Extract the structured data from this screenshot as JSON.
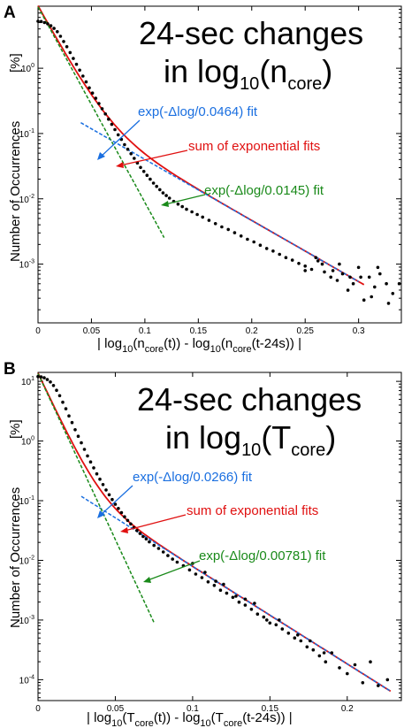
{
  "chart_data": [
    {
      "panel": "A",
      "type": "scatter",
      "title_line1": "24-sec changes",
      "title_line2_main": "in log",
      "title_line2_sub": "10",
      "title_line2_paren_open": "(n",
      "title_line2_sub2": "core",
      "title_line2_paren_close": ")",
      "ylabel": "Number of Occurrences",
      "yunit": "[%]",
      "xlabel_parts": [
        "| log",
        "10",
        "(n",
        "core",
        "(t))  -  log",
        "10",
        "(n",
        "core",
        "(t-24s)) |"
      ],
      "xlim": [
        0,
        0.34
      ],
      "ylim_log10": [
        -3.9,
        0.95
      ],
      "x_ticks": [
        0,
        0.05,
        0.1,
        0.15,
        0.2,
        0.25,
        0.3
      ],
      "x_tick_labels": [
        "0",
        "0.05",
        "0.1",
        "0.15",
        "0.2",
        "0.25",
        "0.3"
      ],
      "y_ticks_log10": [
        0,
        -1,
        -2,
        -3
      ],
      "y_tick_labels": [
        [
          "10",
          "0"
        ],
        [
          "10",
          "-1"
        ],
        [
          "10",
          "-2"
        ],
        [
          "10",
          "-3"
        ]
      ],
      "fit1": {
        "label": "exp(-Δlog/0.0464) fit",
        "color": "#1a6fe0",
        "scale": 0.0464,
        "A_log10": -0.46,
        "x_range": [
          0.04,
          0.3
        ]
      },
      "fit2": {
        "label": "exp(-Δlog/0.0145) fit",
        "color": "#1a8a1a",
        "scale": 0.0145,
        "A_log10": 0.94,
        "x_range": [
          0.0,
          0.118
        ]
      },
      "sum_fit": {
        "label": "sum of exponential fits",
        "color": "#e01010",
        "x_range": [
          0.0,
          0.305
        ]
      },
      "points": [
        [
          0.0,
          0.72
        ],
        [
          0.003,
          0.715
        ],
        [
          0.006,
          0.7
        ],
        [
          0.009,
          0.68
        ],
        [
          0.012,
          0.65
        ],
        [
          0.015,
          0.61
        ],
        [
          0.018,
          0.56
        ],
        [
          0.021,
          0.49
        ],
        [
          0.024,
          0.41
        ],
        [
          0.027,
          0.33
        ],
        [
          0.03,
          0.24
        ],
        [
          0.033,
          0.15
        ],
        [
          0.036,
          0.06
        ],
        [
          0.039,
          -0.03
        ],
        [
          0.042,
          -0.12
        ],
        [
          0.045,
          -0.21
        ],
        [
          0.048,
          -0.3
        ],
        [
          0.051,
          -0.38
        ],
        [
          0.054,
          -0.46
        ],
        [
          0.057,
          -0.54
        ],
        [
          0.06,
          -0.62
        ],
        [
          0.063,
          -0.7
        ],
        [
          0.066,
          -0.78
        ],
        [
          0.069,
          -0.86
        ],
        [
          0.072,
          -0.94
        ],
        [
          0.075,
          -1.02
        ],
        [
          0.078,
          -1.09
        ],
        [
          0.081,
          -1.17
        ],
        [
          0.084,
          -1.24
        ],
        [
          0.087,
          -1.31
        ],
        [
          0.09,
          -1.38
        ],
        [
          0.093,
          -1.45
        ],
        [
          0.096,
          -1.52
        ],
        [
          0.099,
          -1.58
        ],
        [
          0.102,
          -1.64
        ],
        [
          0.105,
          -1.7
        ],
        [
          0.108,
          -1.76
        ],
        [
          0.111,
          -1.81
        ],
        [
          0.114,
          -1.86
        ],
        [
          0.117,
          -1.91
        ],
        [
          0.12,
          -1.95
        ],
        [
          0.123,
          -1.99
        ],
        [
          0.127,
          -2.04
        ],
        [
          0.131,
          -2.08
        ],
        [
          0.135,
          -2.12
        ],
        [
          0.139,
          -2.16
        ],
        [
          0.144,
          -2.2
        ],
        [
          0.149,
          -2.24
        ],
        [
          0.154,
          -2.28
        ],
        [
          0.16,
          -2.33
        ],
        [
          0.166,
          -2.38
        ],
        [
          0.172,
          -2.43
        ],
        [
          0.178,
          -2.47
        ],
        [
          0.184,
          -2.52
        ],
        [
          0.19,
          -2.57
        ],
        [
          0.196,
          -2.62
        ],
        [
          0.202,
          -2.66
        ],
        [
          0.208,
          -2.71
        ],
        [
          0.214,
          -2.76
        ],
        [
          0.22,
          -2.8
        ],
        [
          0.226,
          -2.85
        ],
        [
          0.232,
          -2.9
        ],
        [
          0.238,
          -2.94
        ],
        [
          0.244,
          -2.99
        ],
        [
          0.25,
          -3.03
        ],
        [
          0.256,
          -3.08
        ],
        [
          0.262,
          -2.95
        ],
        [
          0.268,
          -3.12
        ],
        [
          0.274,
          -3.2
        ],
        [
          0.28,
          -3.25
        ],
        [
          0.285,
          -3.15
        ],
        [
          0.29,
          -3.4
        ],
        [
          0.295,
          -3.3
        ],
        [
          0.3,
          -3.05
        ],
        [
          0.305,
          -3.55
        ],
        [
          0.31,
          -3.2
        ],
        [
          0.315,
          -3.35
        ],
        [
          0.32,
          -3.15
        ],
        [
          0.326,
          -3.3
        ],
        [
          0.332,
          -3.45
        ],
        [
          0.338,
          -3.3
        ],
        [
          0.25,
          -3.1
        ],
        [
          0.26,
          -2.9
        ],
        [
          0.266,
          -3.0
        ],
        [
          0.276,
          -3.1
        ],
        [
          0.282,
          -3.0
        ],
        [
          0.292,
          -3.2
        ],
        [
          0.302,
          -3.2
        ],
        [
          0.312,
          -3.5
        ],
        [
          0.318,
          -3.05
        ],
        [
          0.328,
          -3.6
        ]
      ]
    },
    {
      "panel": "B",
      "type": "scatter",
      "title_line1": "24-sec changes",
      "title_line2_main": "in log",
      "title_line2_sub": "10",
      "title_line2_paren_open": "(T",
      "title_line2_sub2": "core",
      "title_line2_paren_close": ")",
      "ylabel": "Number of Occurrences",
      "yunit": "[%]",
      "xlabel_parts": [
        "| log",
        "10",
        "(T",
        "core",
        "(t))  -  log",
        "10",
        "(T",
        "core",
        "(t-24s)) |"
      ],
      "xlim": [
        0,
        0.235
      ],
      "ylim_log10": [
        -4.35,
        1.15
      ],
      "x_ticks": [
        0,
        0.05,
        0.1,
        0.15,
        0.2
      ],
      "x_tick_labels": [
        "0",
        "0.05",
        "0.1",
        "0.15",
        "0.2"
      ],
      "y_ticks_log10": [
        1,
        0,
        -1,
        -2,
        -3,
        -4
      ],
      "y_tick_labels": [
        [
          "10",
          "1"
        ],
        [
          "10",
          "0"
        ],
        [
          "10",
          "-1"
        ],
        [
          "10",
          "-2"
        ],
        [
          "10",
          "-3"
        ],
        [
          "10",
          "-4"
        ]
      ],
      "fit1": {
        "label": "exp(-Δlog/0.0266) fit",
        "color": "#1a6fe0",
        "scale": 0.0266,
        "A_log10": -0.47,
        "x_range": [
          0.028,
          0.228
        ]
      },
      "fit2": {
        "label": "exp(-Δlog/0.00781) fit",
        "color": "#1a8a1a",
        "scale": 0.00781,
        "A_log10": 1.13,
        "x_range": [
          0.0,
          0.075
        ]
      },
      "sum_fit": {
        "label": "sum of exponential fits",
        "color": "#e01010",
        "x_range": [
          0.0,
          0.228
        ]
      },
      "points": [
        [
          0.0,
          1.08
        ],
        [
          0.002,
          1.075
        ],
        [
          0.004,
          1.06
        ],
        [
          0.006,
          1.03
        ],
        [
          0.008,
          0.99
        ],
        [
          0.01,
          0.93
        ],
        [
          0.012,
          0.85
        ],
        [
          0.014,
          0.76
        ],
        [
          0.016,
          0.65
        ],
        [
          0.018,
          0.54
        ],
        [
          0.02,
          0.42
        ],
        [
          0.022,
          0.31
        ],
        [
          0.024,
          0.19
        ],
        [
          0.026,
          0.08
        ],
        [
          0.028,
          -0.03
        ],
        [
          0.03,
          -0.14
        ],
        [
          0.032,
          -0.25
        ],
        [
          0.034,
          -0.35
        ],
        [
          0.036,
          -0.45
        ],
        [
          0.038,
          -0.55
        ],
        [
          0.04,
          -0.64
        ],
        [
          0.042,
          -0.73
        ],
        [
          0.044,
          -0.82
        ],
        [
          0.046,
          -0.9
        ],
        [
          0.048,
          -0.98
        ],
        [
          0.05,
          -1.06
        ],
        [
          0.052,
          -1.13
        ],
        [
          0.054,
          -1.2
        ],
        [
          0.056,
          -1.27
        ],
        [
          0.058,
          -1.33
        ],
        [
          0.06,
          -1.39
        ],
        [
          0.062,
          -1.45
        ],
        [
          0.064,
          -1.5
        ],
        [
          0.066,
          -1.55
        ],
        [
          0.068,
          -1.6
        ],
        [
          0.07,
          -1.64
        ],
        [
          0.072,
          -1.69
        ],
        [
          0.075,
          -1.75
        ],
        [
          0.078,
          -1.8
        ],
        [
          0.081,
          -1.86
        ],
        [
          0.084,
          -1.92
        ],
        [
          0.087,
          -1.98
        ],
        [
          0.09,
          -2.03
        ],
        [
          0.094,
          -2.09
        ],
        [
          0.098,
          -2.16
        ],
        [
          0.102,
          -2.23
        ],
        [
          0.106,
          -2.29
        ],
        [
          0.11,
          -2.36
        ],
        [
          0.114,
          -2.42
        ],
        [
          0.118,
          -2.5
        ],
        [
          0.122,
          -2.55
        ],
        [
          0.126,
          -2.62
        ],
        [
          0.13,
          -2.7
        ],
        [
          0.134,
          -2.75
        ],
        [
          0.138,
          -2.82
        ],
        [
          0.142,
          -2.9
        ],
        [
          0.146,
          -2.95
        ],
        [
          0.15,
          -3.05
        ],
        [
          0.154,
          -3.08
        ],
        [
          0.158,
          -3.15
        ],
        [
          0.162,
          -3.22
        ],
        [
          0.166,
          -3.3
        ],
        [
          0.17,
          -3.35
        ],
        [
          0.174,
          -3.45
        ],
        [
          0.178,
          -3.5
        ],
        [
          0.182,
          -3.6
        ],
        [
          0.186,
          -3.7
        ],
        [
          0.19,
          -3.55
        ],
        [
          0.195,
          -3.8
        ],
        [
          0.2,
          -3.9
        ],
        [
          0.205,
          -3.75
        ],
        [
          0.21,
          -4.05
        ],
        [
          0.215,
          -3.7
        ],
        [
          0.22,
          -4.1
        ],
        [
          0.226,
          -4.0
        ],
        [
          0.1,
          -2.05
        ],
        [
          0.108,
          -2.2
        ],
        [
          0.115,
          -2.35
        ],
        [
          0.12,
          -2.4
        ],
        [
          0.128,
          -2.6
        ],
        [
          0.134,
          -2.65
        ],
        [
          0.14,
          -2.72
        ],
        [
          0.148,
          -3.0
        ],
        [
          0.156,
          -3.0
        ],
        [
          0.168,
          -3.25
        ],
        [
          0.176,
          -3.35
        ],
        [
          0.185,
          -3.55
        ]
      ]
    }
  ]
}
